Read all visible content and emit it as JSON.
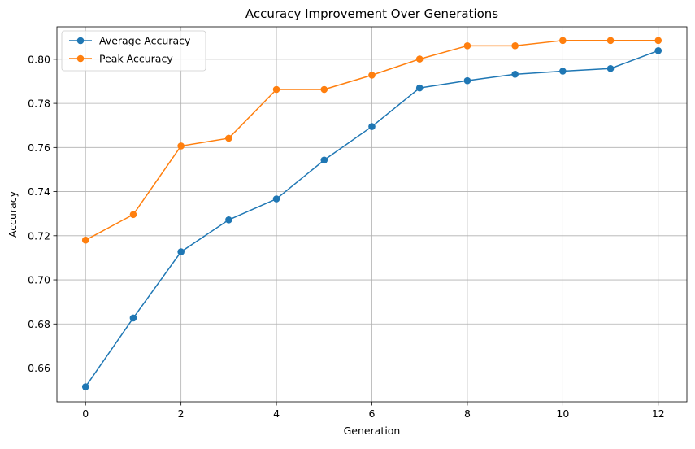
{
  "chart_data": {
    "type": "line",
    "title": "Accuracy Improvement Over Generations",
    "xlabel": "Generation",
    "ylabel": "Accuracy",
    "x": [
      0,
      1,
      2,
      3,
      4,
      5,
      6,
      7,
      8,
      9,
      10,
      11,
      12
    ],
    "xlim": [
      -0.6,
      12.6
    ],
    "ylim": [
      0.6447,
      0.8147
    ],
    "xticks": [
      0,
      2,
      4,
      6,
      8,
      10,
      12
    ],
    "xtick_labels": [
      "0",
      "2",
      "4",
      "6",
      "8",
      "10",
      "12"
    ],
    "yticks": [
      0.66,
      0.68,
      0.7,
      0.72,
      0.74,
      0.76,
      0.78,
      0.8
    ],
    "ytick_labels": [
      "0.66",
      "0.68",
      "0.70",
      "0.72",
      "0.74",
      "0.76",
      "0.78",
      "0.80"
    ],
    "grid": true,
    "legend_position": "top-left",
    "series": [
      {
        "name": "Average Accuracy",
        "color": "#1f77b4",
        "marker": "circle",
        "values": [
          0.6515,
          0.6827,
          0.7127,
          0.7272,
          0.7367,
          0.7543,
          0.7695,
          0.787,
          0.7903,
          0.7932,
          0.7946,
          0.7958,
          0.8039
        ]
      },
      {
        "name": "Peak Accuracy",
        "color": "#ff7f0e",
        "marker": "circle",
        "values": [
          0.718,
          0.7296,
          0.7607,
          0.7642,
          0.7863,
          0.7863,
          0.7928,
          0.8001,
          0.8061,
          0.8061,
          0.8085,
          0.8085,
          0.8085
        ]
      }
    ]
  }
}
